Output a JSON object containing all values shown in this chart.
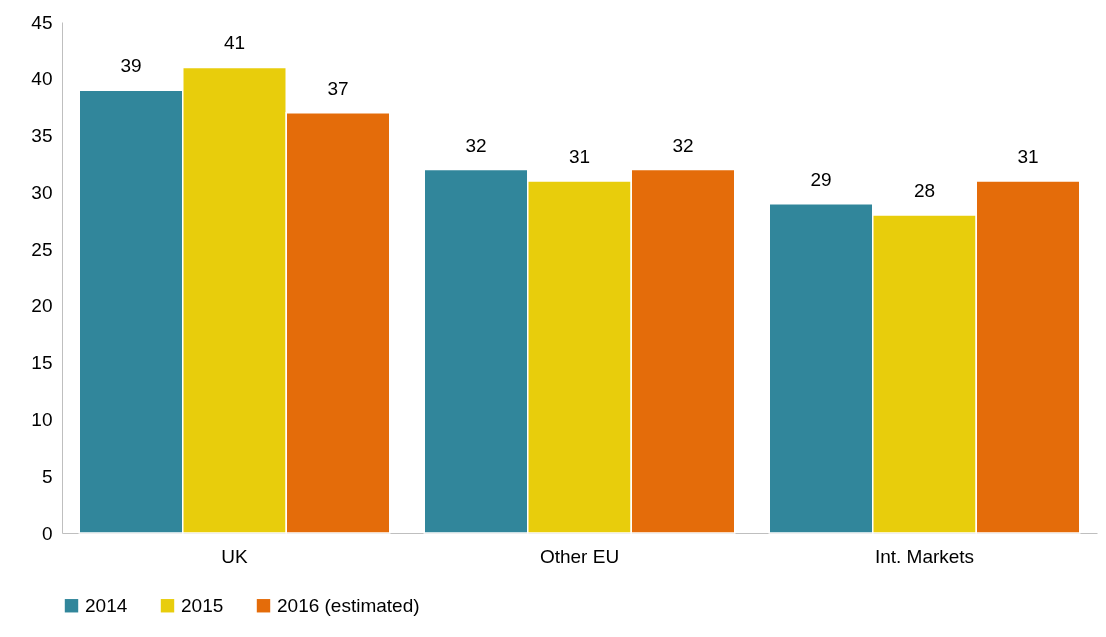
{
  "chart_data": {
    "type": "bar",
    "categories": [
      "UK",
      "Other EU",
      "Int. Markets"
    ],
    "series": [
      {
        "name": "2014",
        "color": "#31869b",
        "values": [
          39,
          32,
          29
        ]
      },
      {
        "name": "2015",
        "color": "#e8cd0c",
        "values": [
          41,
          31,
          28
        ]
      },
      {
        "name": "2016 (estimated)",
        "color": "#e46c0a",
        "values": [
          37,
          32,
          31
        ]
      }
    ],
    "ylim": [
      0,
      45
    ],
    "yticks": [
      0,
      5,
      10,
      15,
      20,
      25,
      30,
      35,
      40,
      45
    ],
    "data_labels": true,
    "grid": false,
    "legend": "bottom"
  }
}
